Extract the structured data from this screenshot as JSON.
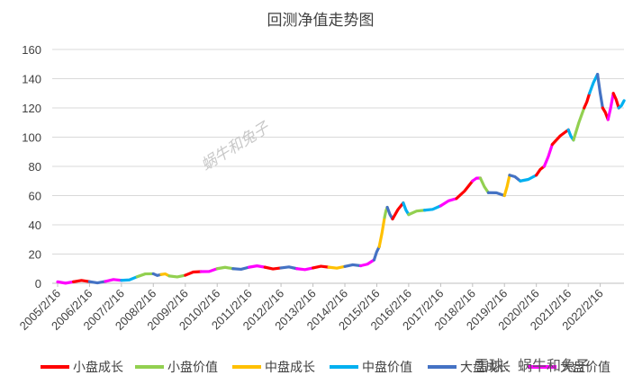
{
  "chart_data": {
    "type": "line",
    "title": "回测净值走势图",
    "xlabel": "",
    "ylabel": "",
    "ylim": [
      0,
      160
    ],
    "yticks": [
      "0",
      "20",
      "40",
      "60",
      "80",
      "100",
      "120",
      "140",
      "160"
    ],
    "x_tick_labels": [
      "2005/2/16",
      "2006/2/16",
      "2007/2/16",
      "2008/2/16",
      "2009/2/16",
      "2010/2/16",
      "2011/2/16",
      "2012/2/16",
      "2013/2/16",
      "2014/2/16",
      "2015/2/16",
      "2016/2/16",
      "2017/2/16",
      "2018/2/16",
      "2019/2/16",
      "2020/2/16",
      "2021/2/16",
      "2022/2/16"
    ],
    "grid": "horizontal",
    "legend": "bottom",
    "series_key": [
      {
        "name": "小盘成长",
        "color": "#ff0000"
      },
      {
        "name": "小盘价值",
        "color": "#92d050"
      },
      {
        "name": "中盘成长",
        "color": "#ffc000"
      },
      {
        "name": "中盘价值",
        "color": "#00b0f0"
      },
      {
        "name": "大盘成长",
        "color": "#4472c4"
      },
      {
        "name": "大盘价值",
        "color": "#ff00ff"
      }
    ],
    "series_note": "Single rotating-style net value curve; segments colored by the style held in each period.",
    "points": [
      [
        "2005/2/16",
        1.0
      ],
      [
        "2005/8/16",
        1.0
      ],
      [
        "2006/2/16",
        1.1
      ],
      [
        "2006/8/16",
        1.3
      ],
      [
        "2007/2/16",
        2.0
      ],
      [
        "2007/8/16",
        4.5
      ],
      [
        "2008/2/16",
        6.5
      ],
      [
        "2008/5/16",
        6.0
      ],
      [
        "2008/8/16",
        5.0
      ],
      [
        "2009/2/16",
        5.5
      ],
      [
        "2009/8/16",
        8.0
      ],
      [
        "2010/2/16",
        10.0
      ],
      [
        "2010/8/16",
        10.0
      ],
      [
        "2011/2/16",
        11.0
      ],
      [
        "2011/8/16",
        11.0
      ],
      [
        "2012/2/16",
        10.5
      ],
      [
        "2012/8/16",
        10.0
      ],
      [
        "2013/2/16",
        10.5
      ],
      [
        "2013/8/16",
        11.0
      ],
      [
        "2014/2/16",
        11.5
      ],
      [
        "2014/8/16",
        12.0
      ],
      [
        "2015/1/16",
        16.0
      ],
      [
        "2015/3/16",
        25.0
      ],
      [
        "2015/5/16",
        45.0
      ],
      [
        "2015/6/16",
        52.0
      ],
      [
        "2015/8/16",
        44.0
      ],
      [
        "2015/12/16",
        55.0
      ],
      [
        "2016/2/16",
        47.0
      ],
      [
        "2016/8/16",
        50.0
      ],
      [
        "2017/2/16",
        53.0
      ],
      [
        "2017/8/16",
        58.0
      ],
      [
        "2018/2/16",
        70.0
      ],
      [
        "2018/5/16",
        72.0
      ],
      [
        "2018/8/16",
        62.0
      ],
      [
        "2019/2/16",
        60.0
      ],
      [
        "2019/4/16",
        74.0
      ],
      [
        "2019/8/16",
        70.0
      ],
      [
        "2020/2/16",
        74.0
      ],
      [
        "2020/5/16",
        80.0
      ],
      [
        "2020/8/16",
        95.0
      ],
      [
        "2021/2/16",
        105.0
      ],
      [
        "2021/4/16",
        98.0
      ],
      [
        "2021/8/16",
        120.0
      ],
      [
        "2021/10/16",
        130.0
      ],
      [
        "2022/1/16",
        143.0
      ],
      [
        "2022/3/16",
        120.0
      ],
      [
        "2022/5/16",
        112.0
      ],
      [
        "2022/7/16",
        130.0
      ],
      [
        "2022/9/16",
        120.0
      ],
      [
        "2022/11/16",
        125.0
      ]
    ],
    "segment_styles": [
      "大盘价值",
      "小盘成长",
      "大盘成长",
      "大盘价值",
      "中盘价值",
      "小盘价值",
      "大盘成长",
      "中盘成长",
      "小盘价值",
      "小盘成长",
      "大盘价值",
      "小盘价值",
      "大盘成长",
      "大盘价值",
      "小盘成长",
      "大盘成长",
      "大盘价值",
      "小盘成长",
      "中盘成长",
      "大盘成长",
      "大盘价值",
      "大盘成长",
      "中盘成长",
      "小盘价值",
      "大盘成长",
      "小盘成长",
      "中盘价值",
      "小盘价值",
      "中盘价值",
      "大盘价值",
      "小盘成长",
      "大盘价值",
      "小盘价值",
      "大盘成长",
      "中盘成长",
      "大盘成长",
      "中盘价值",
      "小盘成长",
      "大盘价值",
      "小盘成长",
      "中盘价值",
      "小盘价值",
      "小盘成长",
      "中盘价值",
      "大盘成长",
      "小盘成长",
      "大盘价值",
      "小盘成长",
      "中盘价值"
    ]
  },
  "watermark": {
    "text": "蜗牛和兔子"
  },
  "overlay": {
    "text": "雪球：蜗牛和兔子"
  }
}
